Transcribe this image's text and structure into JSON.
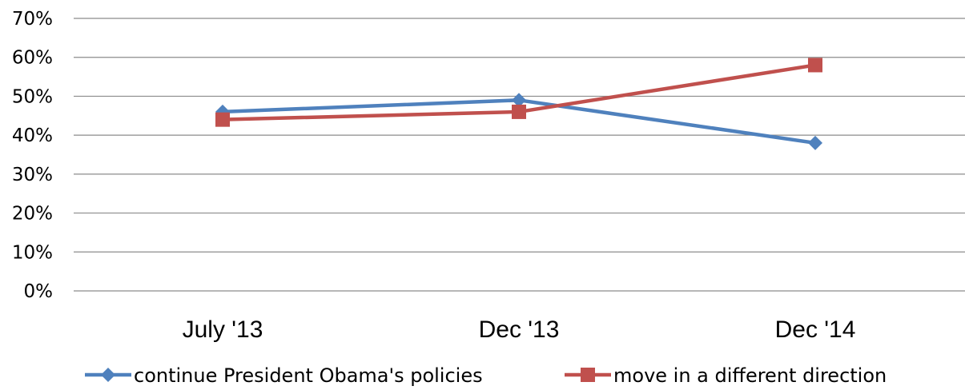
{
  "chart_data": {
    "type": "line",
    "categories": [
      "July '13",
      "Dec '13",
      "Dec '14"
    ],
    "series": [
      {
        "name": "continue President Obama's policies",
        "values": [
          46,
          49,
          38
        ],
        "color": "#4F81BD",
        "marker": "diamond"
      },
      {
        "name": "move in a different direction",
        "values": [
          44,
          46,
          58
        ],
        "color": "#C0504D",
        "marker": "square"
      }
    ],
    "ylim": [
      0,
      70
    ],
    "y_ticks": [
      "0%",
      "10%",
      "20%",
      "30%",
      "40%",
      "50%",
      "60%",
      "70%"
    ],
    "y_tick_values": [
      0,
      10,
      20,
      30,
      40,
      50,
      60,
      70
    ],
    "grid": true,
    "legend_position": "bottom"
  }
}
